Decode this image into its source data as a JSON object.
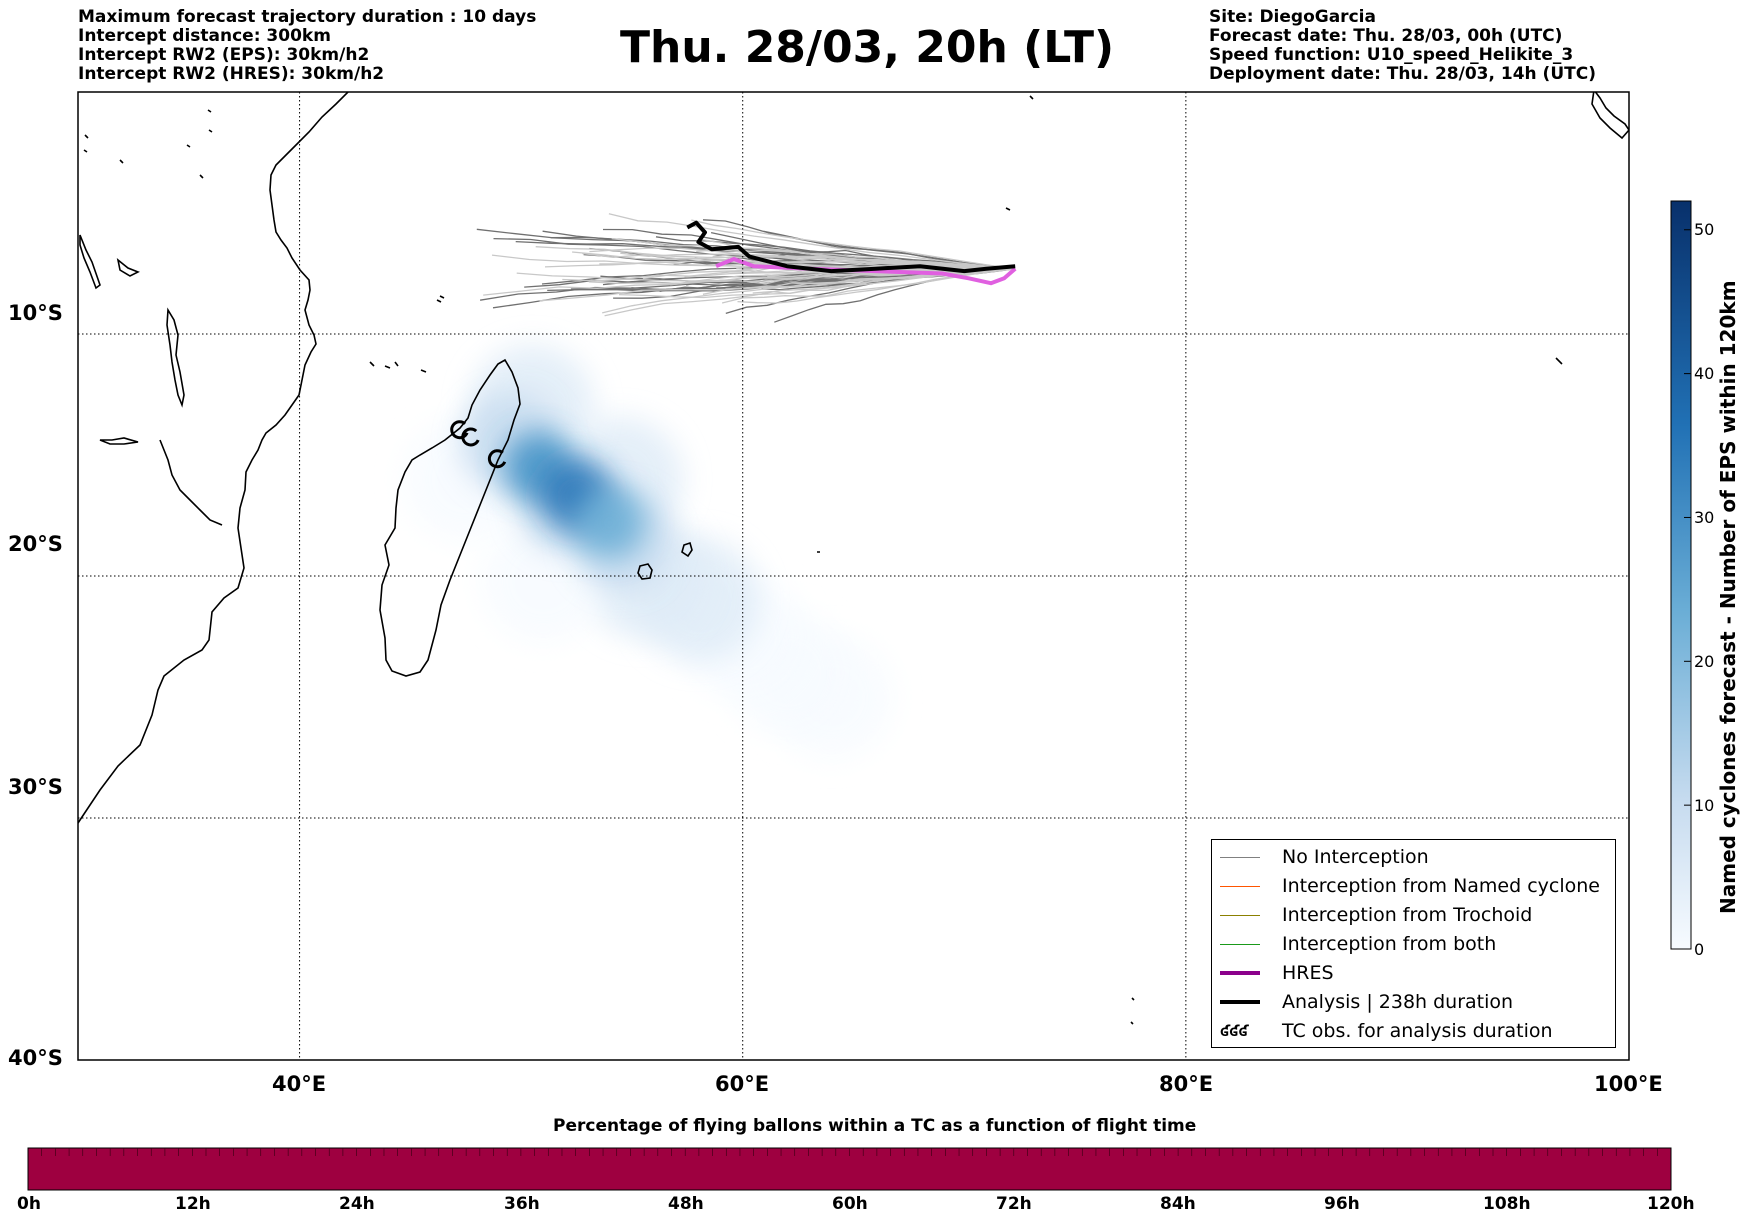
{
  "header_left": [
    "Maximum forecast trajectory duration : 10 days",
    "Intercept distance: 300km",
    "Intercept RW2 (EPS):  30km/h2",
    "Intercept RW2 (HRES): 30km/h2"
  ],
  "title": "Thu. 28/03, 20h (LT)",
  "header_right": [
    "Site: DiegoGarcia",
    "Forecast date: Thu. 28/03, 00h (UTC)",
    "Speed function: U10_speed_Helikite_3",
    "Deployment date: Thu. 28/03, 14h (UTC)"
  ],
  "map": {
    "lon_range": [
      30,
      100
    ],
    "lat_range": [
      -40,
      0
    ],
    "lon_ticks": [
      {
        "value": 40,
        "label": "40°E"
      },
      {
        "value": 60,
        "label": "60°E"
      },
      {
        "value": 80,
        "label": "80°E"
      },
      {
        "value": 100,
        "label": "100°E"
      }
    ],
    "lat_ticks": [
      {
        "value": -10,
        "label": "10°S"
      },
      {
        "value": -20,
        "label": "20°S"
      },
      {
        "value": -30,
        "label": "30°S"
      },
      {
        "value": -40,
        "label": "40°S"
      }
    ],
    "gridlines": "dotted"
  },
  "density": {
    "colormap": "Blues",
    "colorbar_label": "Named cyclones forecast - Number of EPS within 120km",
    "colorbar_range": [
      0,
      52
    ],
    "colorbar_ticks": [
      "0",
      "10",
      "20",
      "30",
      "40",
      "50"
    ],
    "blobs": [
      {
        "lon": 64.0,
        "lat": -25.0,
        "level": 3
      },
      {
        "lon": 62.0,
        "lat": -24.0,
        "level": 3
      },
      {
        "lon": 60.0,
        "lat": -22.5,
        "level": 3
      },
      {
        "lon": 58.0,
        "lat": -21.0,
        "level": 4
      },
      {
        "lon": 55.5,
        "lat": -20.0,
        "level": 4
      },
      {
        "lon": 51.0,
        "lat": -20.2,
        "level": 3
      },
      {
        "lon": 47.5,
        "lat": -16.0,
        "level": 3
      },
      {
        "lon": 54.5,
        "lat": -16.0,
        "level": 4
      },
      {
        "lon": 50.5,
        "lat": -13.0,
        "level": 6
      },
      {
        "lon": 49.5,
        "lat": -14.5,
        "level": 12
      },
      {
        "lon": 52.0,
        "lat": -17.0,
        "level": 15
      },
      {
        "lon": 54.5,
        "lat": -18.5,
        "level": 14
      },
      {
        "lon": 50.8,
        "lat": -15.5,
        "level": 30
      },
      {
        "lon": 52.5,
        "lat": -16.7,
        "level": 36
      },
      {
        "lon": 54.0,
        "lat": -17.8,
        "level": 24
      }
    ]
  },
  "trajectories": {
    "hres": {
      "lon": [
        72.3,
        71.8,
        71.2,
        70.2,
        69.0,
        66.0,
        63.0,
        60.5,
        59.6,
        58.8
      ],
      "lat": [
        -7.3,
        -7.7,
        -7.9,
        -7.7,
        -7.5,
        -7.4,
        -7.3,
        -7.2,
        -6.9,
        -7.2
      ]
    },
    "analysis": {
      "lon": [
        72.3,
        71.0,
        70.0,
        68.0,
        66.0,
        64.0,
        62.0,
        60.3,
        59.8,
        58.6,
        58.0,
        58.3,
        57.9,
        57.5
      ],
      "lat": [
        -7.2,
        -7.3,
        -7.4,
        -7.2,
        -7.3,
        -7.4,
        -7.2,
        -6.8,
        -6.4,
        -6.5,
        -6.2,
        -5.8,
        -5.4,
        -5.6
      ]
    },
    "tc_obs": [
      {
        "lon": 47.2,
        "lat": -14.0
      },
      {
        "lon": 47.7,
        "lat": -14.3
      },
      {
        "lon": 48.9,
        "lat": -15.2
      }
    ]
  },
  "legend": [
    {
      "label": "No Interception",
      "color": "#808080",
      "width": 1.5
    },
    {
      "label": "Interception from Named cyclone",
      "color": "#ff5500",
      "width": 1.5
    },
    {
      "label": "Interception from Trochoid",
      "color": "#8b8000",
      "width": 1.5
    },
    {
      "label": "Interception from both",
      "color": "#1a9a1a",
      "width": 1.5
    },
    {
      "label": "HRES",
      "color": "#8b008b",
      "width": 4
    },
    {
      "label": "Analysis | 238h duration",
      "color": "#000000",
      "width": 4
    },
    {
      "label": "TC obs. for analysis duration",
      "symbol": "ʛʛʛ"
    }
  ],
  "time_bar": {
    "title": "Percentage of flying ballons within a TC as a function of flight time",
    "color": "#9e0040",
    "ticks": [
      "0h",
      "12h",
      "24h",
      "36h",
      "48h",
      "60h",
      "72h",
      "84h",
      "96h",
      "108h",
      "120h"
    ]
  }
}
